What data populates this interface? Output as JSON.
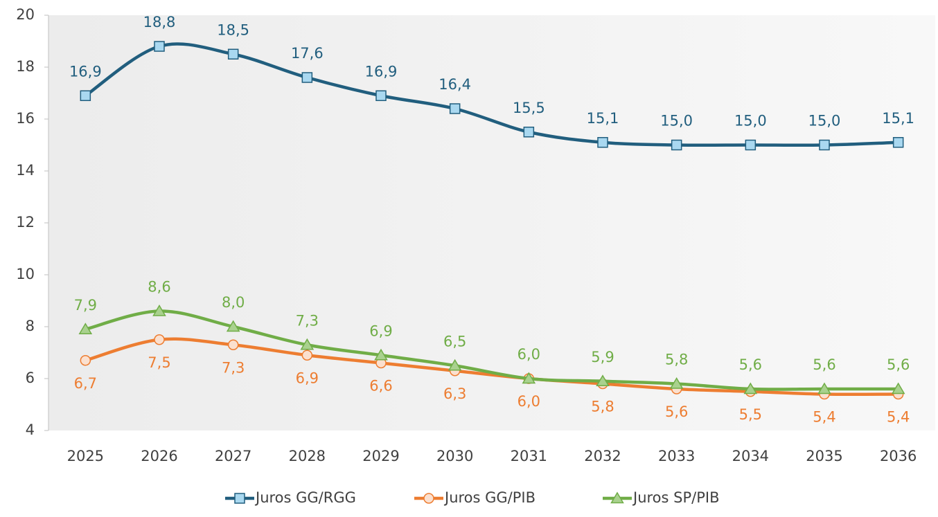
{
  "chart_data": {
    "type": "line",
    "categories": [
      "2025",
      "2026",
      "2027",
      "2028",
      "2029",
      "2030",
      "2031",
      "2032",
      "2033",
      "2034",
      "2035",
      "2036"
    ],
    "series": [
      {
        "name": "Juros GG/RGG",
        "color": "#215e7e",
        "marker_fill": "#a9d8f0",
        "marker": "square",
        "label_position": "above",
        "values": [
          16.9,
          18.8,
          18.5,
          17.6,
          16.9,
          16.4,
          15.5,
          15.1,
          15.0,
          15.0,
          15.0,
          15.1
        ],
        "value_labels": [
          "16,9",
          "18,8",
          "18,5",
          "17,6",
          "16,9",
          "16,4",
          "15,5",
          "15,1",
          "15,0",
          "15,0",
          "15,0",
          "15,1"
        ]
      },
      {
        "name": "Juros GG/PIB",
        "color": "#ed7d31",
        "marker_fill": "#fbe0cf",
        "marker": "circle",
        "label_position": "below",
        "values": [
          6.7,
          7.5,
          7.3,
          6.9,
          6.6,
          6.3,
          6.0,
          5.8,
          5.6,
          5.5,
          5.4,
          5.4
        ],
        "value_labels": [
          "6,7",
          "7,5",
          "7,3",
          "6,9",
          "6,6",
          "6,3",
          "6,0",
          "5,8",
          "5,6",
          "5,5",
          "5,4",
          "5,4"
        ]
      },
      {
        "name": "Juros SP/PIB",
        "color": "#70ad47",
        "marker_fill": "#a9d18e",
        "marker": "triangle",
        "label_position": "above",
        "values": [
          7.9,
          8.6,
          8.0,
          7.3,
          6.9,
          6.5,
          6.0,
          5.9,
          5.8,
          5.6,
          5.6,
          5.6
        ],
        "value_labels": [
          "7,9",
          "8,6",
          "8,0",
          "7,3",
          "6,9",
          "6,5",
          "6,0",
          "5,9",
          "5,8",
          "5,6",
          "5,6",
          "5,6"
        ]
      }
    ],
    "ylim": [
      4,
      20
    ],
    "yticks": [
      4,
      6,
      8,
      10,
      12,
      14,
      16,
      18,
      20
    ],
    "smooth": true,
    "grid": false,
    "legend": "bottom"
  }
}
